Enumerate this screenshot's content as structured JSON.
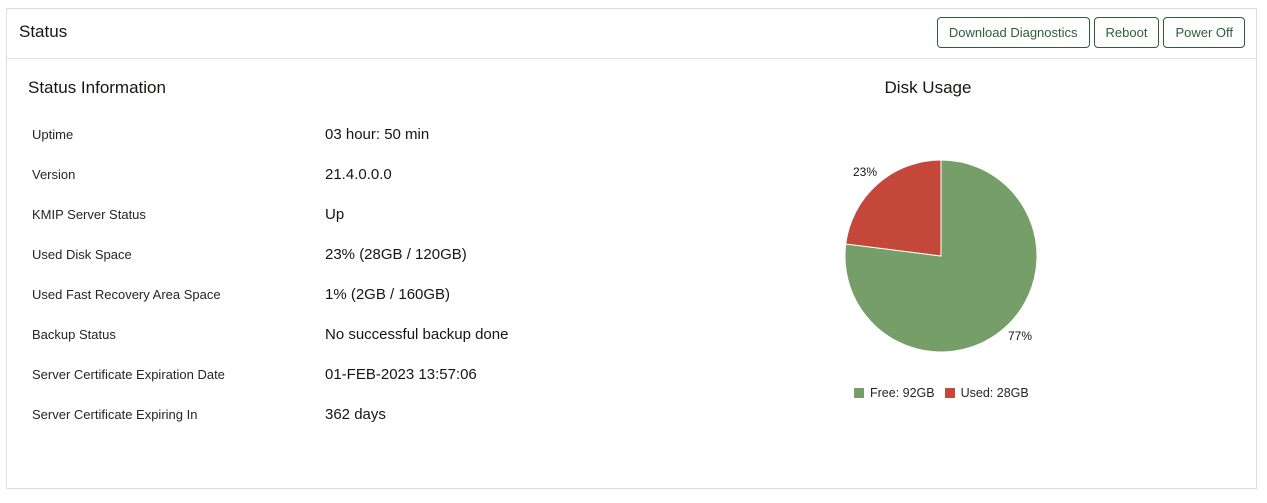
{
  "header": {
    "title": "Status",
    "buttons": {
      "download_diagnostics": "Download Diagnostics",
      "reboot": "Reboot",
      "power_off": "Power Off"
    }
  },
  "status_info": {
    "title": "Status Information",
    "rows": [
      {
        "label": "Uptime",
        "value": "03 hour: 50 min"
      },
      {
        "label": "Version",
        "value": "21.4.0.0.0"
      },
      {
        "label": "KMIP Server Status",
        "value": "Up"
      },
      {
        "label": "Used Disk Space",
        "value": "23% (28GB / 120GB)"
      },
      {
        "label": "Used Fast Recovery Area Space",
        "value": "1% (2GB / 160GB)"
      },
      {
        "label": "Backup Status",
        "value": "No successful backup done"
      },
      {
        "label": "Server Certificate Expiration Date",
        "value": "01-FEB-2023 13:57:06"
      },
      {
        "label": "Server Certificate Expiring In",
        "value": "362 days"
      }
    ]
  },
  "chart_data": {
    "type": "pie",
    "title": "Disk Usage",
    "categories": [
      "Free: 92GB",
      "Used: 28GB"
    ],
    "values": [
      77,
      23
    ],
    "slice_labels": [
      "77%",
      "23%"
    ],
    "colors": [
      "#759e68",
      "#c4483a"
    ],
    "legend": "bottom"
  }
}
